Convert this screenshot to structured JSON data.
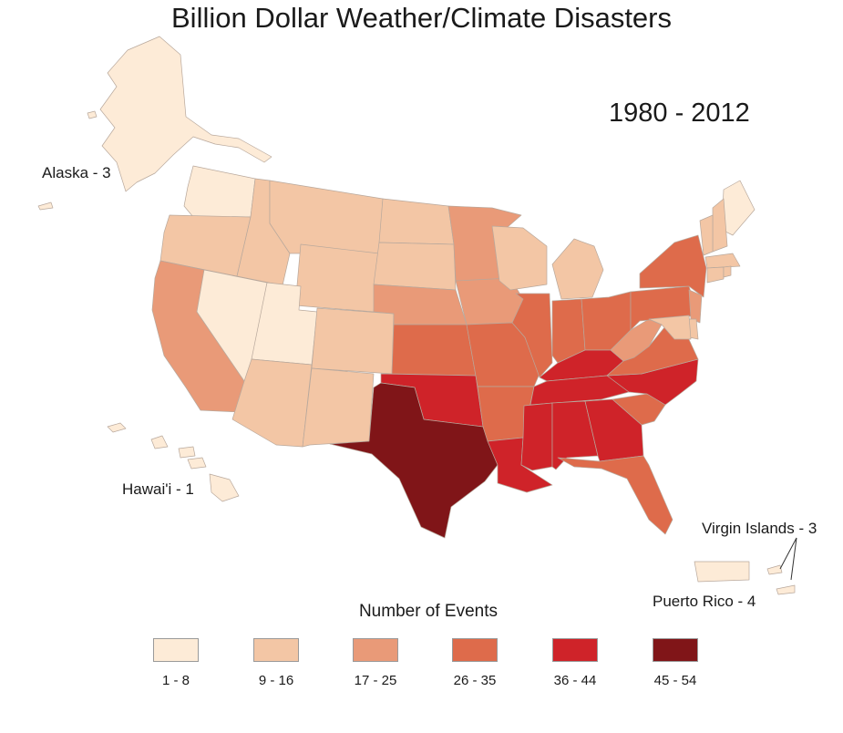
{
  "title": "Billion Dollar Weather/Climate Disasters",
  "period": "1980 - 2012",
  "labels": {
    "alaska": "Alaska - 3",
    "hawaii": "Hawai'i - 1",
    "virgin_islands": "Virgin Islands - 3",
    "puerto_rico": "Puerto Rico - 4"
  },
  "legend": {
    "title": "Number of Events",
    "bins": [
      {
        "label": "1 - 8",
        "color": "#fdebd7"
      },
      {
        "label": "9 - 16",
        "color": "#f3c6a5"
      },
      {
        "label": "17 - 25",
        "color": "#e99a78"
      },
      {
        "label": "26 - 35",
        "color": "#de6b4b"
      },
      {
        "label": "36 - 44",
        "color": "#cf2329"
      },
      {
        "label": "45 - 54",
        "color": "#801518"
      }
    ]
  },
  "states": {
    "WA": 1,
    "OR": 2,
    "CA": 3,
    "NV": 1,
    "ID": 2,
    "MT": 2,
    "WY": 2,
    "UT": 1,
    "AZ": 2,
    "CO": 2,
    "NM": 2,
    "ND": 2,
    "SD": 2,
    "NE": 3,
    "KS": 4,
    "OK": 5,
    "TX": 6,
    "MN": 3,
    "IA": 3,
    "MO": 4,
    "AR": 4,
    "LA": 5,
    "WI": 2,
    "IL": 4,
    "MI": 2,
    "IN": 4,
    "OH": 4,
    "KY": 5,
    "TN": 5,
    "MS": 5,
    "AL": 5,
    "GA": 5,
    "FL": 4,
    "SC": 4,
    "NC": 5,
    "VA": 4,
    "WV": 3,
    "PA": 4,
    "NY": 4,
    "ME": 1,
    "NH": 2,
    "VT": 2,
    "MA": 2,
    "CT": 2,
    "RI": 2,
    "NJ": 3,
    "DE": 2,
    "MD": 2,
    "AK": 1,
    "HI": 1,
    "PR": 1,
    "VI": 1
  }
}
